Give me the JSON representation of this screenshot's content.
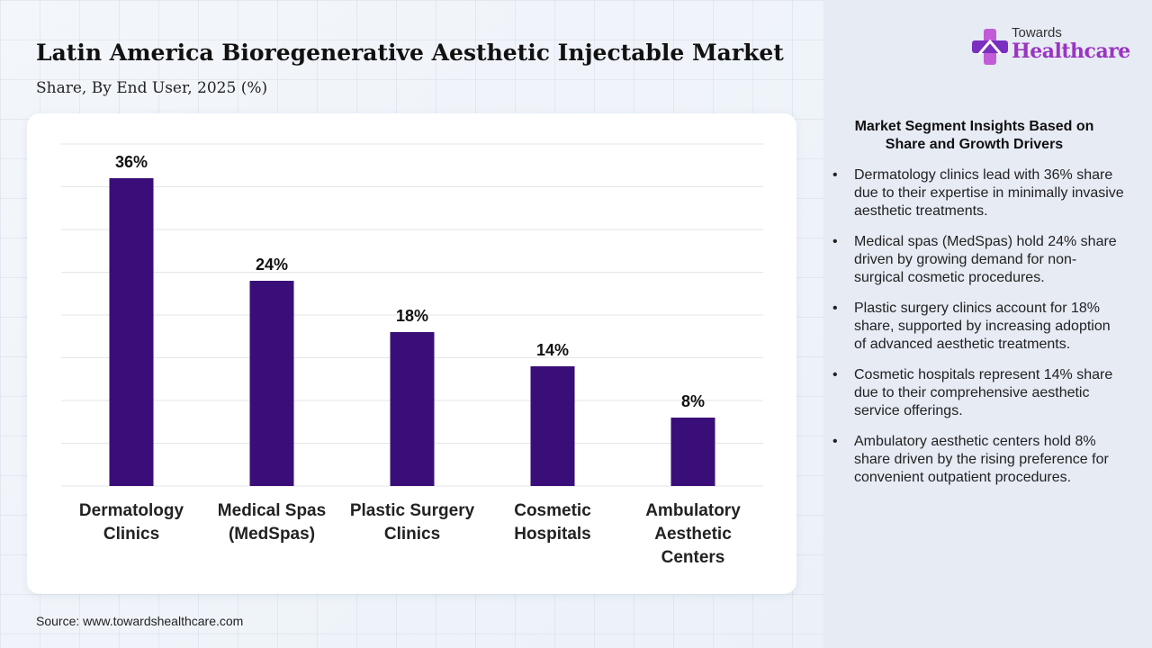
{
  "header": {
    "title": "Latin America Bioregenerative Aesthetic Injectable Market",
    "subtitle": "Share, By End User, 2025 (%)"
  },
  "logo": {
    "small": "Towards",
    "big": "Healthcare"
  },
  "colors": {
    "bar": "#3a0e78",
    "logo_accent": "#9b34c2",
    "grid": "#e3e6ea"
  },
  "chart_data": {
    "type": "bar",
    "title": "Latin America Bioregenerative Aesthetic Injectable Market",
    "subtitle": "Share, By End User, 2025 (%)",
    "categories": [
      [
        "Dermatology",
        "Clinics"
      ],
      [
        "Medical Spas",
        "(MedSpas)"
      ],
      [
        "Plastic Surgery",
        "Clinics"
      ],
      [
        "Cosmetic",
        "Hospitals"
      ],
      [
        "Ambulatory",
        "Aesthetic",
        "Centers"
      ]
    ],
    "values": [
      36,
      24,
      18,
      14,
      8
    ],
    "data_labels": [
      "36%",
      "24%",
      "18%",
      "14%",
      "8%"
    ],
    "ylim": [
      0,
      40
    ],
    "xlabel": "",
    "ylabel": "",
    "grid": true
  },
  "insights": {
    "title": "Market Segment Insights Based on Share and Growth Drivers",
    "items": [
      "Dermatology clinics lead with 36% share due to their expertise in minimally invasive aesthetic treatments.",
      "Medical spas (MedSpas) hold 24% share driven by growing demand for non-surgical cosmetic procedures.",
      "Plastic surgery clinics account for 18% share, supported by increasing adoption of advanced aesthetic treatments.",
      "Cosmetic hospitals represent 14% share due to their comprehensive aesthetic service offerings.",
      "Ambulatory aesthetic centers hold 8% share driven by the rising preference for convenient outpatient procedures."
    ]
  },
  "footer": {
    "source": "Source: www.towardshealthcare.com"
  }
}
